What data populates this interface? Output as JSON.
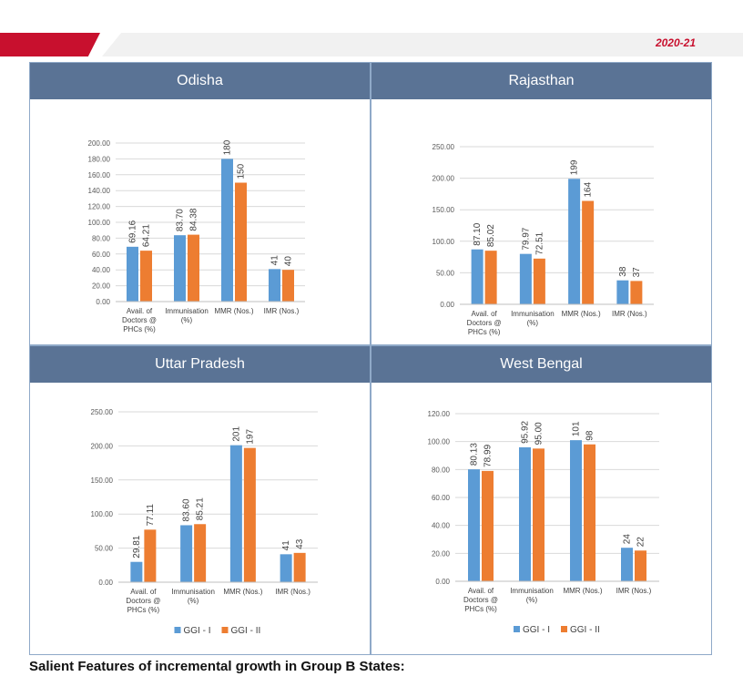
{
  "header": {
    "year": "2020-21"
  },
  "footer": {
    "text": "Salient Features of incremental growth in Group B States:"
  },
  "colors": {
    "ggi1": "#5b9bd5",
    "ggi2": "#ed7d31",
    "header_bg": "#5a7395"
  },
  "chart_data": [
    {
      "type": "bar",
      "title": "Odisha",
      "categories": [
        "Avail. of Doctors @ PHCs (%)",
        "Immunisation (%)",
        "MMR (Nos.)",
        "IMR (Nos.)"
      ],
      "category_lines": [
        [
          "Avail. of",
          "Doctors @",
          "PHCs (%)"
        ],
        [
          "Immunisation",
          "(%)"
        ],
        [
          "MMR (Nos.)"
        ],
        [
          "IMR (Nos.)"
        ]
      ],
      "series": [
        {
          "name": "GGI - I",
          "values": [
            69.16,
            83.7,
            180,
            41
          ],
          "labels": [
            "69.16",
            "83.70",
            "180",
            "41"
          ]
        },
        {
          "name": "GGI - II",
          "values": [
            64.21,
            84.38,
            150,
            40
          ],
          "labels": [
            "64.21",
            "84.38",
            "150",
            "40"
          ]
        }
      ],
      "ylim": [
        0,
        200
      ],
      "yticks": [
        "0.00",
        "20.00",
        "40.00",
        "60.00",
        "80.00",
        "100.00",
        "120.00",
        "140.00",
        "160.00",
        "180.00",
        "200.00"
      ]
    },
    {
      "type": "bar",
      "title": "Rajasthan",
      "categories": [
        "Avail. of Doctors @ PHCs (%)",
        "Immunisation (%)",
        "MMR (Nos.)",
        "IMR (Nos.)"
      ],
      "category_lines": [
        [
          "Avail. of",
          "Doctors @",
          "PHCs (%)"
        ],
        [
          "Immunisation",
          "(%)"
        ],
        [
          "MMR (Nos.)"
        ],
        [
          "IMR (Nos.)"
        ]
      ],
      "series": [
        {
          "name": "GGI - I",
          "values": [
            87.1,
            79.97,
            199,
            38
          ],
          "labels": [
            "87.10",
            "79.97",
            "199",
            "38"
          ]
        },
        {
          "name": "GGI - II",
          "values": [
            85.02,
            72.51,
            164,
            37
          ],
          "labels": [
            "85.02",
            "72.51",
            "164",
            "37"
          ]
        }
      ],
      "ylim": [
        0,
        250
      ],
      "yticks": [
        "0.00",
        "50.00",
        "100.00",
        "150.00",
        "200.00",
        "250.00"
      ]
    },
    {
      "type": "bar",
      "title": "Uttar Pradesh",
      "categories": [
        "Avail. of Doctors @ PHCs (%)",
        "Immunisation (%)",
        "MMR (Nos.)",
        "IMR (Nos.)"
      ],
      "category_lines": [
        [
          "Avail. of",
          "Doctors @",
          "PHCs (%)"
        ],
        [
          "Immunisation",
          "(%)"
        ],
        [
          "MMR (Nos.)"
        ],
        [
          "IMR (Nos.)"
        ]
      ],
      "series": [
        {
          "name": "GGI - I",
          "values": [
            29.81,
            83.6,
            201,
            41
          ],
          "labels": [
            "29.81",
            "83.60",
            "201",
            "41"
          ]
        },
        {
          "name": "GGI - II",
          "values": [
            77.11,
            85.21,
            197,
            43
          ],
          "labels": [
            "77.11",
            "85.21",
            "197",
            "43"
          ]
        }
      ],
      "ylim": [
        0,
        250
      ],
      "yticks": [
        "0.00",
        "50.00",
        "100.00",
        "150.00",
        "200.00",
        "250.00"
      ]
    },
    {
      "type": "bar",
      "title": "West Bengal",
      "categories": [
        "Avail. of Doctors @ PHCs (%)",
        "Immunisation (%)",
        "MMR (Nos.)",
        "IMR (Nos.)"
      ],
      "category_lines": [
        [
          "Avail. of",
          "Doctors @",
          "PHCs (%)"
        ],
        [
          "Immunisation",
          "(%)"
        ],
        [
          "MMR (Nos.)"
        ],
        [
          "IMR (Nos.)"
        ]
      ],
      "series": [
        {
          "name": "GGI - I",
          "values": [
            80.13,
            95.92,
            101,
            24
          ],
          "labels": [
            "80.13",
            "95.92",
            "101",
            "24"
          ]
        },
        {
          "name": "GGI - II",
          "values": [
            78.99,
            95.0,
            98,
            22
          ],
          "labels": [
            "78.99",
            "95.00",
            "98",
            "22"
          ]
        }
      ],
      "ylim": [
        0,
        120
      ],
      "yticks": [
        "0.00",
        "20.00",
        "40.00",
        "60.00",
        "80.00",
        "100.00",
        "120.00"
      ]
    }
  ]
}
